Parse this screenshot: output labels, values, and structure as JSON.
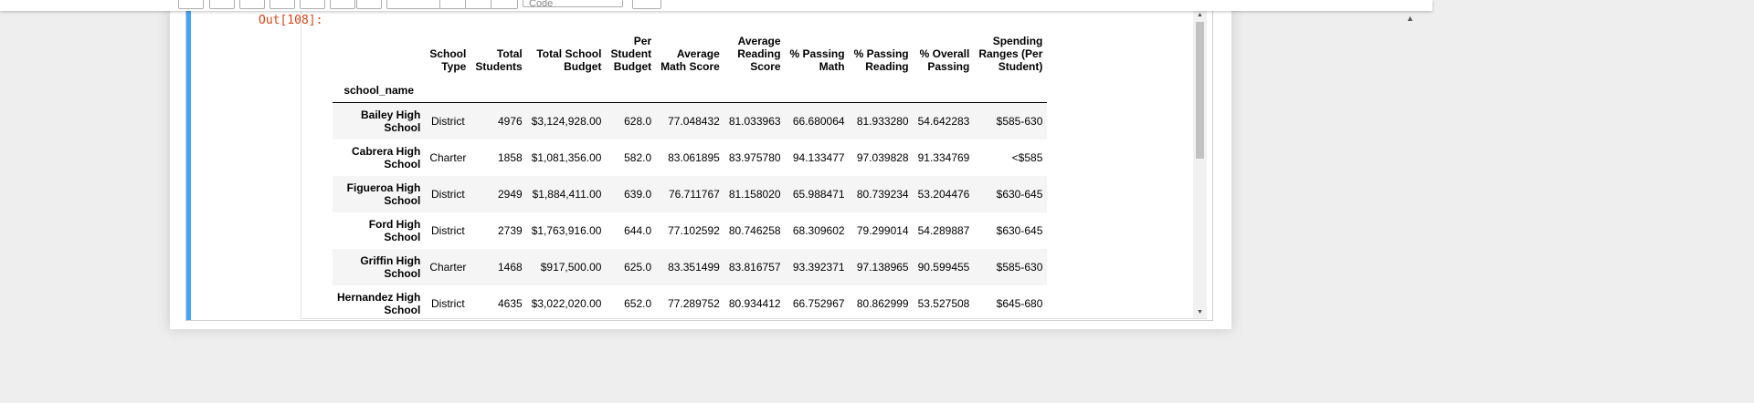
{
  "toolbar": {
    "cell_type_select": "Code"
  },
  "cell": {
    "prompt": "Out[108]:",
    "table": {
      "index_name": "school_name",
      "columns": [
        [
          "School",
          "Type"
        ],
        [
          "Total",
          "Students"
        ],
        [
          "Total School",
          "Budget"
        ],
        [
          "Per",
          "Student",
          "Budget"
        ],
        [
          "Average",
          "Math Score"
        ],
        [
          "Average",
          "Reading",
          "Score"
        ],
        [
          "% Passing",
          "Math"
        ],
        [
          "% Passing",
          "Reading"
        ],
        [
          "% Overall",
          "Passing"
        ],
        [
          "Spending",
          "Ranges (Per",
          "Student)"
        ]
      ],
      "rows": [
        {
          "school": [
            "Bailey High",
            "School"
          ],
          "cells": [
            "District",
            "4976",
            "$3,124,928.00",
            "628.0",
            "77.048432",
            "81.033963",
            "66.680064",
            "81.933280",
            "54.642283",
            "$585-630"
          ]
        },
        {
          "school": [
            "Cabrera High",
            "School"
          ],
          "cells": [
            "Charter",
            "1858",
            "$1,081,356.00",
            "582.0",
            "83.061895",
            "83.975780",
            "94.133477",
            "97.039828",
            "91.334769",
            "<$585"
          ]
        },
        {
          "school": [
            "Figueroa High",
            "School"
          ],
          "cells": [
            "District",
            "2949",
            "$1,884,411.00",
            "639.0",
            "76.711767",
            "81.158020",
            "65.988471",
            "80.739234",
            "53.204476",
            "$630-645"
          ]
        },
        {
          "school": [
            "Ford High",
            "School"
          ],
          "cells": [
            "District",
            "2739",
            "$1,763,916.00",
            "644.0",
            "77.102592",
            "80.746258",
            "68.309602",
            "79.299014",
            "54.289887",
            "$630-645"
          ]
        },
        {
          "school": [
            "Griffin High",
            "School"
          ],
          "cells": [
            "Charter",
            "1468",
            "$917,500.00",
            "625.0",
            "83.351499",
            "83.816757",
            "93.392371",
            "97.138965",
            "90.599455",
            "$585-630"
          ]
        },
        {
          "school": [
            "Hernandez High",
            "School"
          ],
          "cells": [
            "District",
            "4635",
            "$3,022,020.00",
            "652.0",
            "77.289752",
            "80.934412",
            "66.752967",
            "80.862999",
            "53.527508",
            "$645-680"
          ]
        }
      ]
    }
  }
}
